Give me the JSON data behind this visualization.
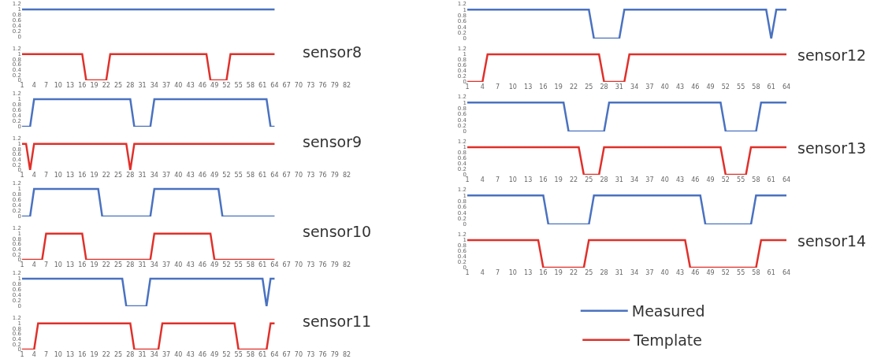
{
  "chart_data": [
    {
      "type": "line",
      "xlim": [
        1,
        82
      ],
      "ylim": [
        0,
        1.2
      ],
      "yticks": [
        0,
        0.2,
        0.4,
        0.6,
        0.8,
        1,
        1.2
      ],
      "tick_labels": "y",
      "series": [
        {
          "color": "#4a72c0",
          "x": [
            1,
            64
          ],
          "values": [
            1,
            1
          ]
        }
      ]
    },
    {
      "type": "line",
      "title": "sensor8",
      "xlim": [
        1,
        82
      ],
      "xticks": [
        1,
        4,
        7,
        10,
        13,
        16,
        19,
        22,
        25,
        28,
        31,
        34,
        37,
        40,
        43,
        46,
        49,
        52,
        55,
        58,
        61,
        64,
        67,
        70,
        73,
        76,
        79,
        82
      ],
      "ylim": [
        0,
        1.2
      ],
      "yticks": [
        0,
        0.2,
        0.4,
        0.6,
        0.8,
        1,
        1.2
      ],
      "series": [
        {
          "color": "#e0302a",
          "x": [
            1,
            16,
            17,
            22,
            23,
            47,
            48,
            52,
            53,
            64
          ],
          "values": [
            1,
            1,
            0,
            0,
            1,
            1,
            0,
            0,
            1,
            1
          ]
        }
      ]
    },
    {
      "type": "line",
      "xlim": [
        1,
        82
      ],
      "ylim": [
        0,
        1.2
      ],
      "yticks": [
        0,
        0.2,
        0.4,
        0.6,
        0.8,
        1,
        1.2
      ],
      "tick_labels": "y",
      "series": [
        {
          "color": "#4a72c0",
          "x": [
            1,
            3,
            4,
            28,
            29,
            33,
            34,
            62,
            63,
            64
          ],
          "values": [
            0,
            0,
            1,
            1,
            0,
            0,
            1,
            1,
            0,
            0
          ]
        }
      ]
    },
    {
      "type": "line",
      "title": "sensor9",
      "xlim": [
        1,
        82
      ],
      "xticks": [
        1,
        4,
        7,
        10,
        13,
        16,
        19,
        22,
        25,
        28,
        31,
        34,
        37,
        40,
        43,
        46,
        49,
        52,
        55,
        58,
        61,
        64,
        67,
        70,
        73,
        76,
        79,
        82
      ],
      "ylim": [
        0,
        1.2
      ],
      "yticks": [
        0,
        0.2,
        0.4,
        0.6,
        0.8,
        1,
        1.2
      ],
      "series": [
        {
          "color": "#e0302a",
          "x": [
            1,
            2,
            3,
            4,
            27,
            28,
            29,
            64
          ],
          "values": [
            1,
            1,
            0,
            1,
            1,
            0,
            1,
            1
          ]
        }
      ]
    },
    {
      "type": "line",
      "xlim": [
        1,
        82
      ],
      "ylim": [
        0,
        1.2
      ],
      "yticks": [
        0,
        0.2,
        0.4,
        0.6,
        0.8,
        1,
        1.2
      ],
      "tick_labels": "y",
      "series": [
        {
          "color": "#4a72c0",
          "x": [
            1,
            3,
            4,
            20,
            21,
            33,
            34,
            50,
            51,
            64
          ],
          "values": [
            0,
            0,
            1,
            1,
            0,
            0,
            1,
            1,
            0,
            0
          ]
        }
      ]
    },
    {
      "type": "line",
      "title": "sensor10",
      "xlim": [
        1,
        82
      ],
      "xticks": [
        1,
        4,
        7,
        10,
        13,
        16,
        19,
        22,
        25,
        28,
        31,
        34,
        37,
        40,
        43,
        46,
        49,
        52,
        55,
        58,
        61,
        64,
        67,
        70,
        73,
        76,
        79,
        82
      ],
      "ylim": [
        0,
        1.2
      ],
      "yticks": [
        0,
        0.2,
        0.4,
        0.6,
        0.8,
        1,
        1.2
      ],
      "series": [
        {
          "color": "#e0302a",
          "x": [
            1,
            6,
            7,
            16,
            17,
            33,
            34,
            48,
            49,
            64
          ],
          "values": [
            0,
            0,
            1,
            1,
            0,
            0,
            1,
            1,
            0,
            0
          ]
        }
      ]
    },
    {
      "type": "line",
      "xlim": [
        1,
        82
      ],
      "ylim": [
        0,
        1.2
      ],
      "yticks": [
        0,
        0.2,
        0.4,
        0.6,
        0.8,
        1,
        1.2
      ],
      "tick_labels": "y",
      "series": [
        {
          "color": "#4a72c0",
          "x": [
            1,
            26,
            27,
            32,
            33,
            61,
            62,
            63,
            64
          ],
          "values": [
            1,
            1,
            0,
            0,
            1,
            1,
            0,
            1,
            1
          ]
        }
      ]
    },
    {
      "type": "line",
      "title": "sensor11",
      "xlim": [
        1,
        82
      ],
      "xticks": [
        1,
        4,
        7,
        10,
        13,
        16,
        19,
        22,
        25,
        28,
        31,
        34,
        37,
        40,
        43,
        46,
        49,
        52,
        55,
        58,
        61,
        64,
        67,
        70,
        73,
        76,
        79,
        82
      ],
      "ylim": [
        0,
        1.2
      ],
      "yticks": [
        0,
        0.2,
        0.4,
        0.6,
        0.8,
        1,
        1.2
      ],
      "series": [
        {
          "color": "#e0302a",
          "x": [
            1,
            4,
            5,
            28,
            29,
            35,
            36,
            54,
            55,
            62,
            63,
            64
          ],
          "values": [
            0,
            0,
            1,
            1,
            0,
            0,
            1,
            1,
            0,
            0,
            1,
            1
          ]
        }
      ]
    },
    {
      "type": "line",
      "xlim": [
        1,
        64
      ],
      "ylim": [
        0,
        1.2
      ],
      "yticks": [
        0,
        0.2,
        0.4,
        0.6,
        0.8,
        1,
        1.2
      ],
      "tick_labels": "y",
      "series": [
        {
          "color": "#4a72c0",
          "x": [
            1,
            25,
            26,
            31,
            32,
            60,
            61,
            62,
            64
          ],
          "values": [
            1,
            1,
            0,
            0,
            1,
            1,
            0,
            1,
            1
          ]
        }
      ]
    },
    {
      "type": "line",
      "title": "sensor12",
      "xlim": [
        1,
        64
      ],
      "xticks": [
        1,
        4,
        7,
        10,
        13,
        16,
        19,
        22,
        25,
        28,
        31,
        34,
        37,
        40,
        43,
        46,
        49,
        52,
        55,
        58,
        61,
        64
      ],
      "ylim": [
        0,
        1.2
      ],
      "yticks": [
        0,
        0.2,
        0.4,
        0.6,
        0.8,
        1,
        1.2
      ],
      "series": [
        {
          "color": "#e0302a",
          "x": [
            1,
            4,
            5,
            27,
            28,
            32,
            33,
            64
          ],
          "values": [
            0,
            0,
            1,
            1,
            0,
            0,
            1,
            1
          ]
        }
      ]
    },
    {
      "type": "line",
      "xlim": [
        1,
        64
      ],
      "ylim": [
        0,
        1.2
      ],
      "yticks": [
        0,
        0.2,
        0.4,
        0.6,
        0.8,
        1,
        1.2
      ],
      "tick_labels": "y",
      "series": [
        {
          "color": "#4a72c0",
          "x": [
            1,
            20,
            21,
            28,
            29,
            51,
            52,
            58,
            59,
            64
          ],
          "values": [
            1,
            1,
            0,
            0,
            1,
            1,
            0,
            0,
            1,
            1
          ]
        }
      ]
    },
    {
      "type": "line",
      "title": "sensor13",
      "xlim": [
        1,
        64
      ],
      "xticks": [
        1,
        4,
        7,
        10,
        13,
        16,
        19,
        22,
        25,
        28,
        31,
        34,
        37,
        40,
        43,
        46,
        49,
        52,
        55,
        58,
        61,
        64
      ],
      "ylim": [
        0,
        1.2
      ],
      "yticks": [
        0,
        0.2,
        0.4,
        0.6,
        0.8,
        1,
        1.2
      ],
      "series": [
        {
          "color": "#e0302a",
          "x": [
            1,
            23,
            24,
            27,
            28,
            51,
            52,
            56,
            57,
            64
          ],
          "values": [
            1,
            1,
            0,
            0,
            1,
            1,
            0,
            0,
            1,
            1
          ]
        }
      ]
    },
    {
      "type": "line",
      "xlim": [
        1,
        64
      ],
      "ylim": [
        0,
        1.2
      ],
      "yticks": [
        0,
        0.2,
        0.4,
        0.6,
        0.8,
        1,
        1.2
      ],
      "tick_labels": "y",
      "legend": "bottom",
      "series": [
        {
          "name": "Measured",
          "color": "#4a72c0",
          "x": [
            1,
            16,
            17,
            25,
            26,
            47,
            48,
            57,
            58,
            64
          ],
          "values": [
            1,
            1,
            0,
            0,
            1,
            1,
            0,
            0,
            1,
            1
          ]
        }
      ]
    },
    {
      "type": "line",
      "title": "sensor14",
      "xlim": [
        1,
        64
      ],
      "xticks": [
        1,
        4,
        7,
        10,
        13,
        16,
        19,
        22,
        25,
        28,
        31,
        34,
        37,
        40,
        43,
        46,
        49,
        52,
        55,
        58,
        61,
        64
      ],
      "ylim": [
        0,
        1.2
      ],
      "yticks": [
        0,
        0.2,
        0.4,
        0.6,
        0.8,
        1,
        1.2
      ],
      "legend": "bottom",
      "series": [
        {
          "name": "Template",
          "color": "#e0302a",
          "x": [
            1,
            15,
            16,
            24,
            25,
            44,
            45,
            58,
            59,
            64
          ],
          "values": [
            1,
            1,
            0,
            0,
            1,
            1,
            0,
            0,
            1,
            1
          ]
        }
      ]
    }
  ]
}
